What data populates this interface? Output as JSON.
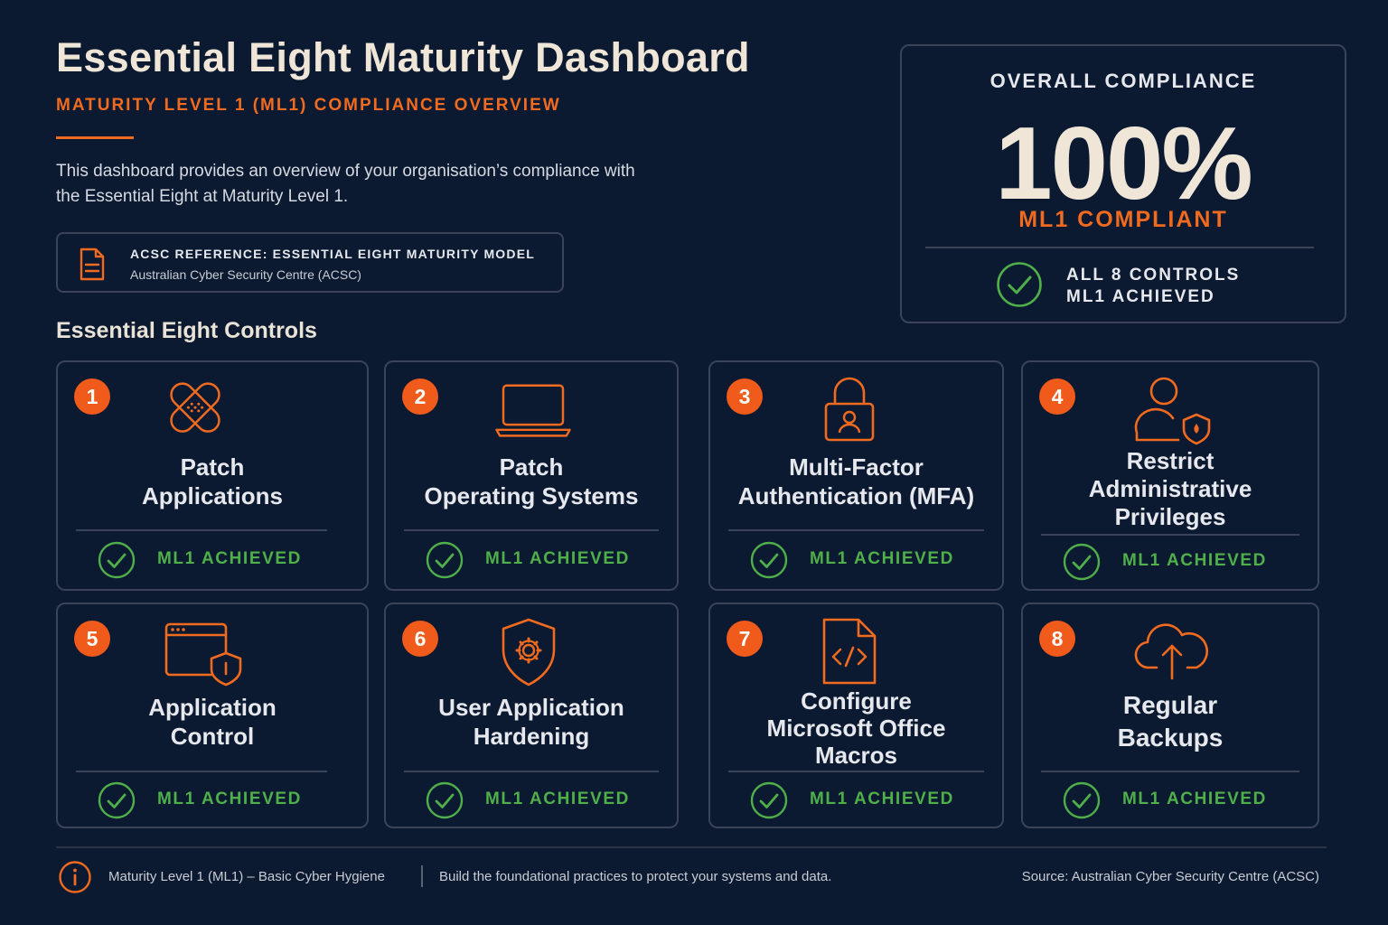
{
  "header": {
    "title": "Essential Eight Maturity Dashboard",
    "subtitle": "MATURITY LEVEL 1 (ML1) COMPLIANCE OVERVIEW",
    "description": "This dashboard provides an overview of your organisation’s compliance with the Essential Eight at Maturity Level 1."
  },
  "reference": {
    "icon": "document-icon",
    "title": "ACSC REFERENCE: ESSENTIAL EIGHT MATURITY MODEL",
    "subtitle": "Australian Cyber Security Centre (ACSC)"
  },
  "overall": {
    "label": "OVERALL COMPLIANCE",
    "value": "100%",
    "status": "ML1 COMPLIANT",
    "note_line1": "ALL 8 CONTROLS",
    "note_line2": "ML1 ACHIEVED",
    "icon": "check-circle-icon"
  },
  "controls_heading": "Essential Eight Controls",
  "controls": [
    {
      "number": "1",
      "title_line1": "Patch",
      "title_line2": "Applications",
      "title_line3": "",
      "status": "ML1 ACHIEVED",
      "icon": "bandage-icon"
    },
    {
      "number": "2",
      "title_line1": "Patch",
      "title_line2": "Operating Systems",
      "title_line3": "",
      "status": "ML1 ACHIEVED",
      "icon": "laptop-icon"
    },
    {
      "number": "3",
      "title_line1": "Multi-Factor",
      "title_line2": "Authentication (MFA)",
      "title_line3": "",
      "status": "ML1 ACHIEVED",
      "icon": "padlock-user-icon"
    },
    {
      "number": "4",
      "title_line1": "Restrict",
      "title_line2": "Administrative",
      "title_line3": "Privileges",
      "status": "ML1 ACHIEVED",
      "icon": "user-shield-icon"
    },
    {
      "number": "5",
      "title_line1": "Application",
      "title_line2": "Control",
      "title_line3": "",
      "status": "ML1 ACHIEVED",
      "icon": "window-shield-icon"
    },
    {
      "number": "6",
      "title_line1": "User Application",
      "title_line2": "Hardening",
      "title_line3": "",
      "status": "ML1 ACHIEVED",
      "icon": "shield-gear-icon"
    },
    {
      "number": "7",
      "title_line1": "Configure",
      "title_line2": "Microsoft Office",
      "title_line3": "Macros",
      "status": "ML1 ACHIEVED",
      "icon": "code-file-icon"
    },
    {
      "number": "8",
      "title_line1": "Regular",
      "title_line2": "Backups",
      "title_line3": "",
      "status": "ML1 ACHIEVED",
      "icon": "cloud-upload-icon"
    }
  ],
  "footer": {
    "icon": "info-icon",
    "left": "Maturity Level 1 (ML1)  –  Basic Cyber Hygiene",
    "middle": "Build the foundational practices to protect your systems and data.",
    "source": "Source: Australian Cyber Security Centre (ACSC)"
  },
  "colors": {
    "background": "#0b1a30",
    "accent": "#f06a1f",
    "success": "#4fb04a",
    "border": "#3a4357"
  }
}
